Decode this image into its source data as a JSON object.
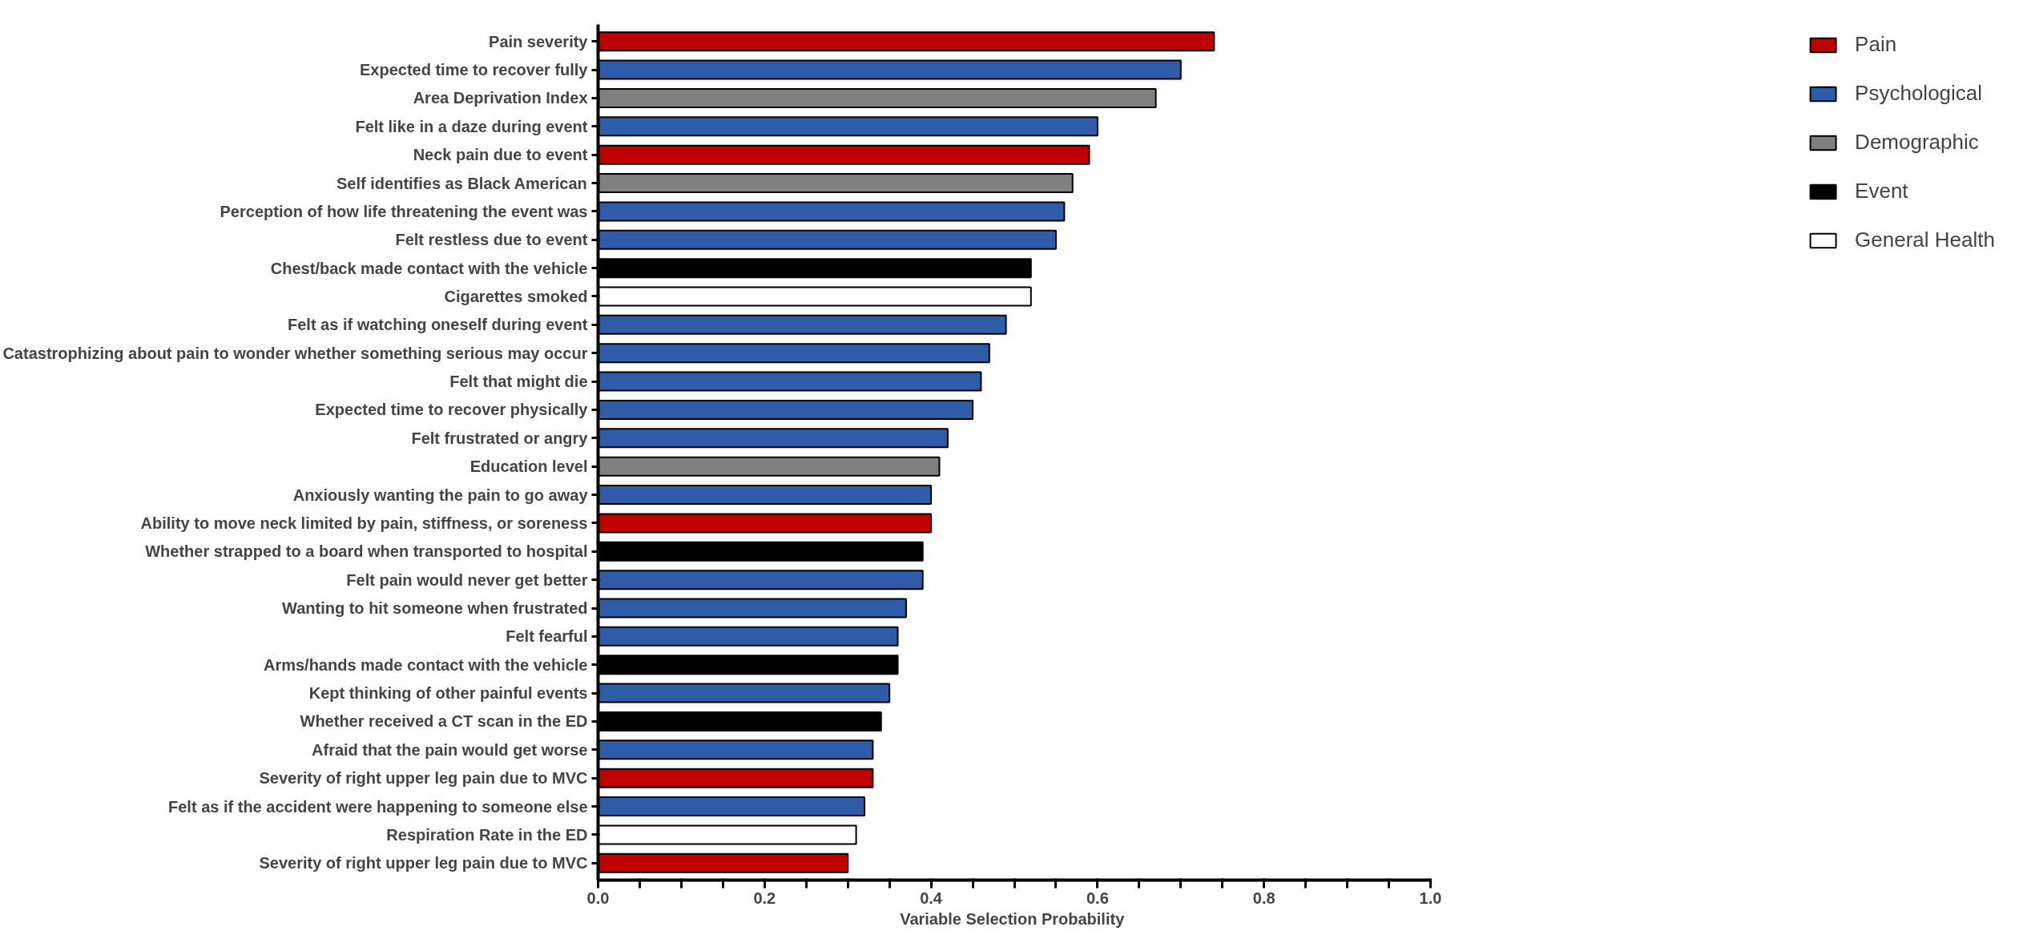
{
  "chart_data": {
    "type": "bar",
    "orientation": "horizontal",
    "xlabel": "Variable Selection  Probability",
    "categories": [
      "Pain severity",
      "Expected time to recover fully",
      "Area Deprivation Index",
      "Felt like in a daze during event",
      "Neck pain due to event",
      "Self identifies as Black American",
      "Perception of how life threatening the event was",
      "Felt restless due to event",
      "Chest/back made contact with the vehicle",
      "Cigarettes smoked",
      "Felt as if watching oneself during event",
      "Catastrophizing about pain to wonder whether something serious may occur",
      "Felt that might die",
      "Expected time to recover physically",
      "Felt frustrated or angry",
      "Education level",
      "Anxiously wanting the pain to go away",
      "Ability to move neck limited by pain, stiffness, or soreness",
      "Whether strapped to a board when transported to hospital",
      "Felt pain would never get better",
      "Wanting to hit someone when frustrated",
      "Felt fearful",
      "Arms/hands made contact with the vehicle",
      "Kept thinking of other painful events",
      "Whether received a CT scan in the ED",
      "Afraid that the pain would get worse",
      "Severity of right upper leg pain due to MVC",
      "Felt as if the accident were happening to someone else",
      "Respiration Rate in the ED",
      "Severity of right upper leg pain due to MVC"
    ],
    "series": [
      {
        "name": "Pain",
        "color": "#c00000",
        "values": [
          0.74,
          null,
          null,
          null,
          0.59,
          null,
          null,
          null,
          null,
          null,
          null,
          null,
          null,
          null,
          null,
          null,
          null,
          0.4,
          null,
          null,
          null,
          null,
          null,
          null,
          null,
          null,
          0.33,
          null,
          null,
          0.3
        ]
      },
      {
        "name": "Psychological",
        "color": "#2e5ca8",
        "values": [
          null,
          0.7,
          null,
          0.6,
          null,
          null,
          0.56,
          0.55,
          null,
          null,
          0.49,
          0.47,
          0.46,
          0.45,
          0.42,
          null,
          0.4,
          null,
          null,
          0.39,
          0.37,
          0.36,
          null,
          0.35,
          null,
          0.33,
          null,
          0.32,
          null,
          null
        ]
      },
      {
        "name": "Demographic",
        "color": "#808080",
        "values": [
          null,
          null,
          0.67,
          null,
          null,
          0.57,
          null,
          null,
          null,
          null,
          null,
          null,
          null,
          null,
          null,
          0.41,
          null,
          null,
          null,
          null,
          null,
          null,
          null,
          null,
          null,
          null,
          null,
          null,
          null,
          null
        ]
      },
      {
        "name": "Event",
        "color": "#000000",
        "values": [
          null,
          null,
          null,
          null,
          null,
          null,
          null,
          null,
          0.52,
          null,
          null,
          null,
          null,
          null,
          null,
          null,
          null,
          null,
          0.39,
          null,
          null,
          null,
          0.36,
          null,
          0.34,
          null,
          null,
          null,
          null,
          null
        ]
      },
      {
        "name": "General Health",
        "color": "#ffffff",
        "values": [
          null,
          null,
          null,
          null,
          null,
          null,
          null,
          null,
          null,
          0.52,
          null,
          null,
          null,
          null,
          null,
          null,
          null,
          null,
          null,
          null,
          null,
          null,
          null,
          null,
          null,
          null,
          null,
          null,
          0.31,
          null
        ]
      }
    ],
    "xlim": [
      0,
      1.0
    ],
    "xticks": [
      {
        "value": 0.0,
        "label": "0.0"
      },
      {
        "value": 0.05,
        "label": null
      },
      {
        "value": 0.1,
        "label": null
      },
      {
        "value": 0.15,
        "label": null
      },
      {
        "value": 0.2,
        "label": "0.2"
      },
      {
        "value": 0.25,
        "label": null
      },
      {
        "value": 0.3,
        "label": null
      },
      {
        "value": 0.35,
        "label": null
      },
      {
        "value": 0.4,
        "label": "0.4"
      },
      {
        "value": 0.45,
        "label": null
      },
      {
        "value": 0.5,
        "label": null
      },
      {
        "value": 0.55,
        "label": null
      },
      {
        "value": 0.6,
        "label": "0.6"
      },
      {
        "value": 0.65,
        "label": null
      },
      {
        "value": 0.7,
        "label": null
      },
      {
        "value": 0.75,
        "label": null
      },
      {
        "value": 0.8,
        "label": "0.8"
      },
      {
        "value": 0.85,
        "label": null
      },
      {
        "value": 0.9,
        "label": null
      },
      {
        "value": 0.95,
        "label": null
      },
      {
        "value": 1.0,
        "label": "1.0"
      }
    ],
    "grid": false,
    "legend": "right"
  }
}
